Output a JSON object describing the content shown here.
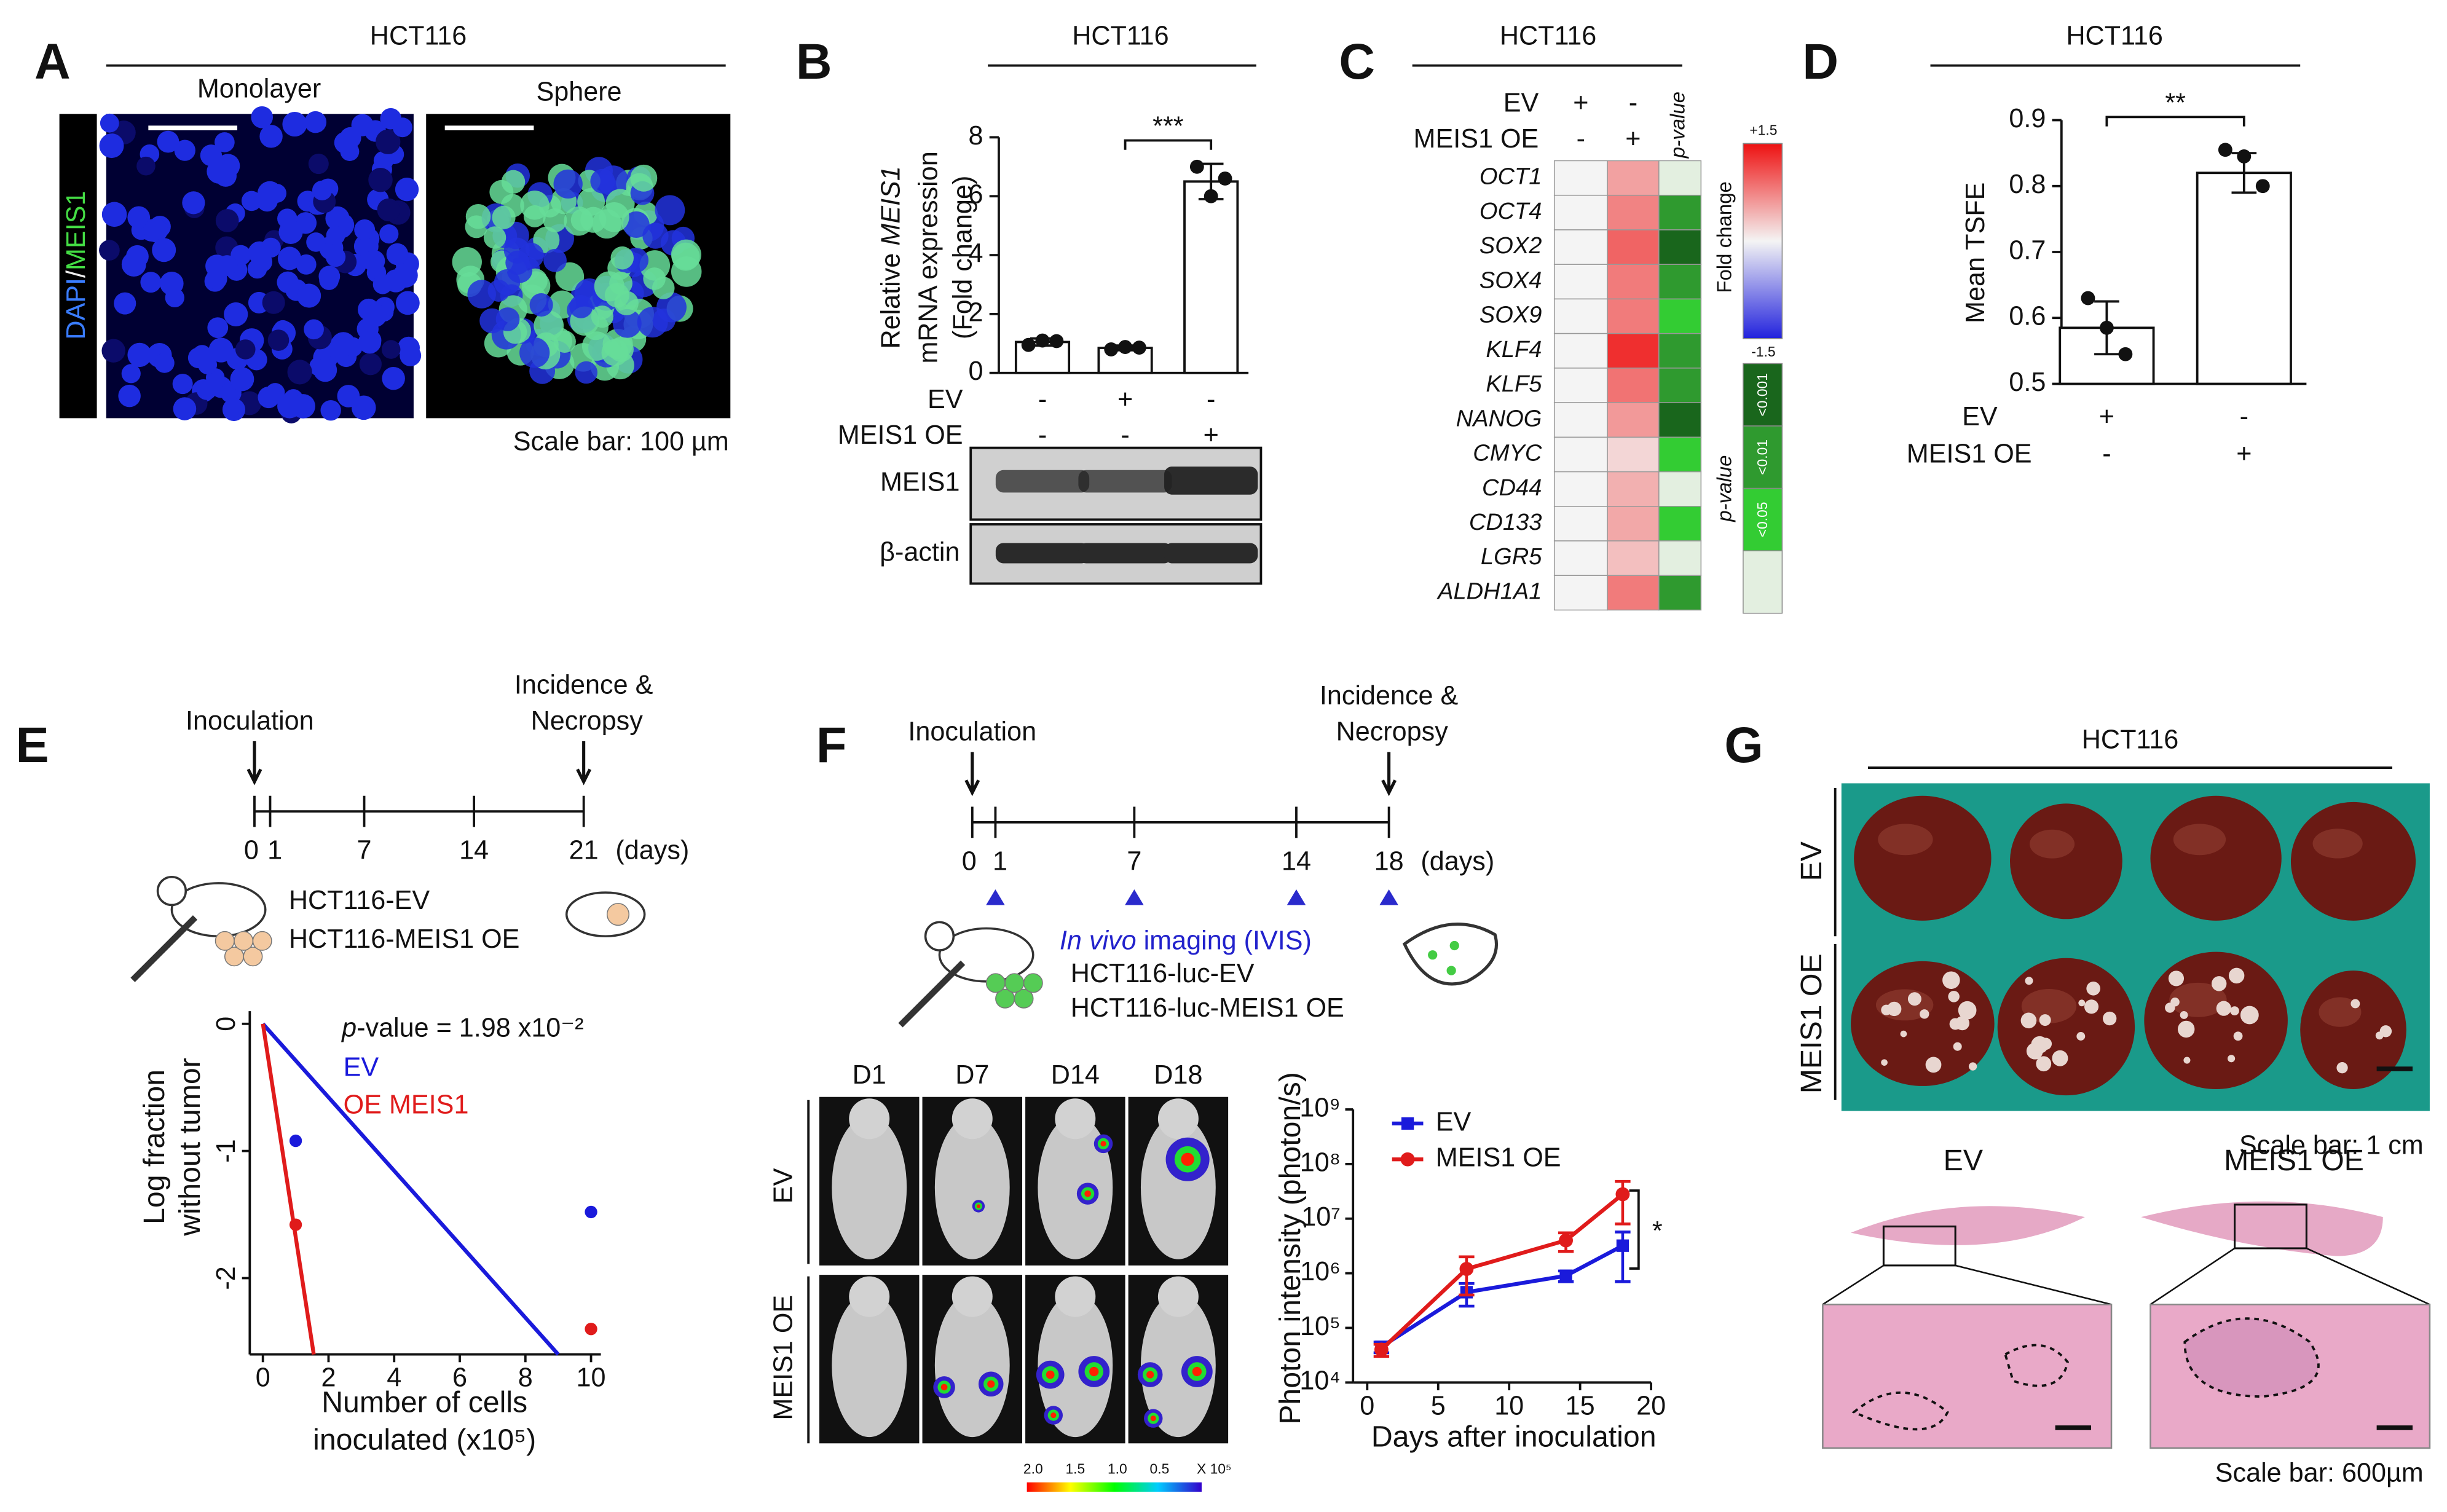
{
  "panel_A": {
    "label": "A",
    "title": "HCT116",
    "images": [
      "Monolayer",
      "Sphere"
    ],
    "stain": [
      "DAPI",
      "/",
      "MEIS1"
    ],
    "scale_bar": "Scale bar: 100 µm"
  },
  "timeline_E": {
    "label": "E",
    "events": [
      "Inoculation",
      "Incidence &",
      "Necropsy"
    ],
    "ticks": [
      0,
      1,
      7,
      14,
      21
    ],
    "xlim": [
      0,
      21
    ],
    "unit": "(days)",
    "groups": [
      "HCT116-EV",
      "HCT116-MEIS1 OE"
    ]
  },
  "timeline_F": {
    "label": "F",
    "events": [
      "Inoculation",
      "Incidence &",
      "Necropsy"
    ],
    "ticks": [
      0,
      1,
      7,
      14,
      18
    ],
    "xlim": [
      0,
      18
    ],
    "imaging_days": [
      1,
      7,
      14,
      18
    ],
    "unit": "(days)",
    "imaging": [
      "In vivo",
      " imaging (IVIS)"
    ],
    "groups": [
      "HCT116-luc-EV",
      "HCT116-luc-MEIS1 OE"
    ]
  },
  "imaging_F": {
    "days": [
      "D1",
      "D7",
      "D14",
      "D18"
    ],
    "rows": [
      "EV",
      "MEIS1 OE"
    ],
    "scale_ticks": [
      "2.0",
      "1.5",
      "1.0",
      "0.5"
    ],
    "scale_unit": "X 10⁵"
  },
  "panel_G": {
    "label": "G",
    "title": "HCT116",
    "rows": [
      "EV",
      "MEIS1 OE"
    ],
    "scale_bar_gross": "Scale bar: 1 cm",
    "histology": [
      "EV",
      "MEIS1 OE"
    ],
    "scale_bar_histo": "Scale bar: 600µm"
  },
  "chart_data": [
    {
      "label": "B",
      "type": "bar",
      "title": "HCT116",
      "ylabel": [
        "Relative ",
        "MEIS1",
        "mRNA expression",
        "(Fold change)"
      ],
      "categories": [
        null,
        null,
        null
      ],
      "values": [
        1.05,
        0.85,
        6.5
      ],
      "errors": [
        0.12,
        0.08,
        0.6
      ],
      "points": [
        [
          0.95,
          1.1,
          1.08
        ],
        [
          0.8,
          0.88,
          0.86
        ],
        [
          7.0,
          6.0,
          6.6
        ]
      ],
      "color": "#ffffff",
      "ylim": [
        0,
        8
      ],
      "yticks": [
        0,
        2,
        4,
        6,
        8
      ],
      "significance": "***",
      "conditions": [
        {
          "name": "EV",
          "signs": [
            "-",
            "+",
            "-"
          ]
        },
        {
          "name": "MEIS1 OE",
          "signs": [
            "-",
            "-",
            "+"
          ]
        }
      ],
      "blot": [
        "MEIS1",
        "β-actin"
      ]
    },
    {
      "label": "C",
      "type": "heatmap",
      "title": "HCT116",
      "conditions": [
        {
          "name": "EV",
          "signs": [
            "+",
            "-"
          ]
        },
        {
          "name": "MEIS1 OE",
          "signs": [
            "-",
            "+"
          ]
        }
      ],
      "pvalue_header": "p-value",
      "genes": [
        "OCT1",
        "OCT4",
        "SOX2",
        "SOX4",
        "SOX9",
        "KLF4",
        "KLF5",
        "NANOG",
        "CMYC",
        "CD44",
        "CD133",
        "LGR5",
        "ALDH1A1"
      ],
      "values": [
        [
          0,
          0.55
        ],
        [
          0,
          0.75
        ],
        [
          0,
          0.95
        ],
        [
          0,
          0.8
        ],
        [
          0,
          0.8
        ],
        [
          0,
          1.3
        ],
        [
          0,
          0.85
        ],
        [
          0,
          0.6
        ],
        [
          0,
          0.2
        ],
        [
          0,
          0.45
        ],
        [
          0,
          0.5
        ],
        [
          0,
          0.35
        ],
        [
          0,
          0.8
        ]
      ],
      "p_values": [
        null,
        "<0.01",
        "<0.001",
        "<0.01",
        "<0.05",
        "<0.01",
        "<0.01",
        "<0.001",
        "<0.05",
        null,
        "<0.05",
        null,
        "<0.01"
      ],
      "clim": [
        -1.5,
        1.5
      ],
      "cticks": [
        {
          "value": 1.5,
          "label": "+1.5"
        },
        -1.5
      ],
      "cmap": [
        "#2222dd",
        "#f4f4f4",
        "#ee1111"
      ],
      "colorbar_label": "Fold change",
      "p_legend": {
        "title": "p-value",
        "levels": [
          "<0.001",
          "<0.01",
          "<0.05"
        ],
        "colors": [
          "#19661c",
          "#2f9a2f",
          "#33cc33"
        ],
        "ns_color": "#e3efe0"
      }
    },
    {
      "label": "D",
      "type": "bar",
      "title": "HCT116",
      "ylabel": "Mean TSFE",
      "categories": [
        null,
        null
      ],
      "values": [
        0.585,
        0.82
      ],
      "errors": [
        0.04,
        0.03
      ],
      "points": [
        [
          0.63,
          0.585,
          0.545
        ],
        [
          0.855,
          0.845,
          0.8
        ]
      ],
      "color": "#ffffff",
      "ylim": [
        0.5,
        0.9
      ],
      "yticks": [
        0.5,
        0.6,
        0.7,
        0.8,
        0.9
      ],
      "significance": "**",
      "conditions": [
        {
          "name": "EV",
          "signs": [
            "+",
            "-"
          ]
        },
        {
          "name": "MEIS1 OE",
          "signs": [
            "-",
            "+"
          ]
        }
      ]
    },
    {
      "type": "scatter",
      "annotation": [
        "p",
        "-value = 1.98 x10⁻²"
      ],
      "ylabel": [
        "Log fraction",
        "without tumor"
      ],
      "xlabel": [
        "Number of cells",
        "inoculated (x10⁵)"
      ],
      "xlim": [
        -0.4,
        10.3
      ],
      "ylim": [
        -2.6,
        0.1
      ],
      "xticks": [
        0,
        2,
        4,
        6,
        8,
        10
      ],
      "yticks": [
        0,
        -1,
        -2
      ],
      "series": [
        {
          "name": "EV",
          "color": "#1a1adb",
          "x": [
            1,
            10
          ],
          "values": [
            -0.92,
            -1.48
          ],
          "fit_x": [
            0,
            9
          ],
          "fit_values": [
            0,
            -2.6
          ]
        },
        {
          "name": "OE MEIS1",
          "color": "#e01b1b",
          "x": [
            1,
            10
          ],
          "values": [
            -1.58,
            -2.4
          ],
          "fit_x": [
            0,
            1.55
          ],
          "fit_values": [
            0,
            -2.6
          ]
        }
      ]
    },
    {
      "type": "line",
      "log_y": true,
      "ylabel": "Photon intensity (photon/s)",
      "xlabel": "Days after inoculation",
      "xlim": [
        -1,
        20
      ],
      "xticks": [
        0,
        5,
        10,
        15,
        20
      ],
      "ylim": [
        10000,
        1000000000
      ],
      "yticks": [
        {
          "value": 10000,
          "label": "10⁴"
        },
        {
          "value": 100000,
          "label": "10⁵"
        },
        {
          "value": 1000000,
          "label": "10⁶"
        },
        {
          "value": 10000000,
          "label": "10⁷"
        },
        {
          "value": 100000000,
          "label": "10⁸"
        },
        {
          "value": 1000000000,
          "label": "10⁹"
        }
      ],
      "x": [
        1,
        7,
        14,
        18
      ],
      "significance": "*",
      "series": [
        {
          "name": "EV",
          "color": "#1a1adb",
          "marker": "square",
          "values": [
            45000,
            450000,
            900000,
            3200000
          ],
          "errors": [
            10000,
            200000,
            200000,
            2500000
          ]
        },
        {
          "name": "MEIS1 OE",
          "color": "#e01b1b",
          "marker": "circle",
          "values": [
            40000,
            1200000,
            4000000,
            28000000
          ],
          "errors": [
            10000,
            800000,
            1500000,
            20000000
          ]
        }
      ]
    }
  ]
}
